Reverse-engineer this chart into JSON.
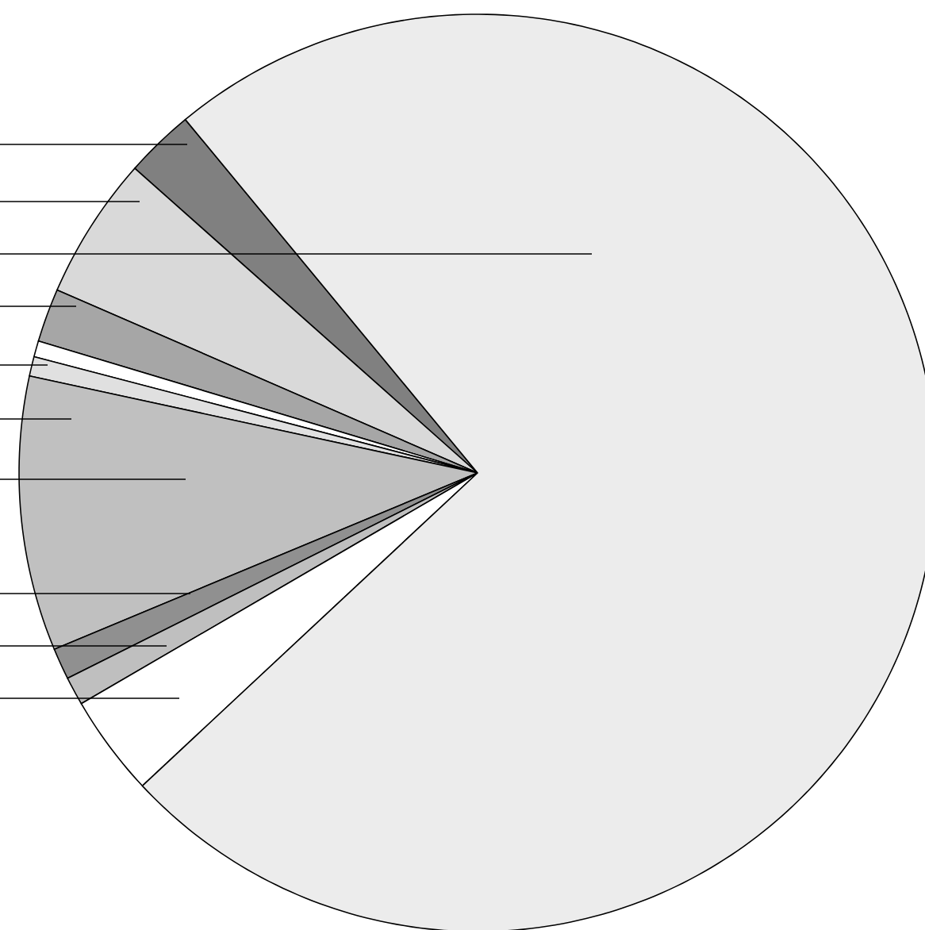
{
  "chart_data": {
    "type": "pie",
    "categories": [
      null,
      null,
      null,
      null,
      null,
      null,
      null,
      null,
      null,
      null
    ],
    "values": [
      2.44,
      5.03,
      1.89,
      0.56,
      0.69,
      9.67,
      1.11,
      1.0,
      3.56,
      74.05
    ],
    "colors": [
      "#808080",
      "#d9d9d9",
      "#a6a6a6",
      "#ffffff",
      "#e0e0e0",
      "#c0c0c0",
      "#909090",
      "#bfbfbf",
      "#ffffff",
      "#ececec"
    ]
  }
}
